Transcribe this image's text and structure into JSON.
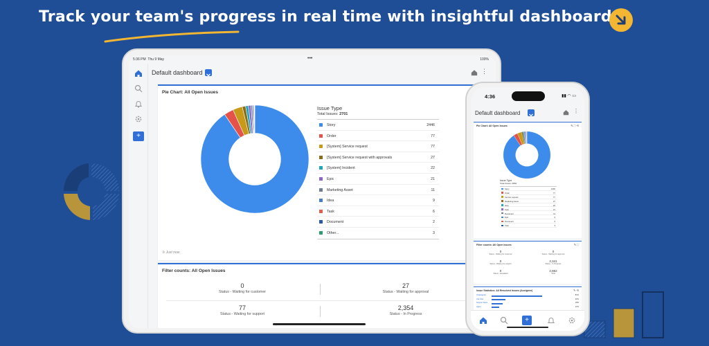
{
  "headline": "Track your team's progress in real time with insightful dashboards",
  "colors": {
    "background": "#1f4e96",
    "accent": "#f2b632",
    "brand": "#2f6fd6"
  },
  "tablet": {
    "status_time": "5:36 PM",
    "status_date": "Thu 9 May",
    "status_dots": "•••",
    "status_battery": "100%",
    "dashboard_title": "Default dashboard",
    "pie_card": {
      "title": "Pie Chart: All Open Issues",
      "legend_title": "Issue Type",
      "total_label": "Total Issues:",
      "total_value": "2701",
      "footer": "Just now"
    },
    "filter_card": {
      "title": "Filter counts: All Open Issues",
      "cells": [
        {
          "value": "0",
          "label": "Status - Waiting for customer"
        },
        {
          "value": "27",
          "label": "Status - Waiting for approval"
        },
        {
          "value": "77",
          "label": "Status - Waiting for support"
        },
        {
          "value": "2,354",
          "label": "Status - In Progress"
        }
      ]
    }
  },
  "chart_data": {
    "type": "pie",
    "title": "Pie Chart: All Open Issues",
    "categories": [
      "Story",
      "Order",
      "[System] Service request",
      "[System] Service request with approvals",
      "[System] Incident",
      "Epic",
      "Marketing Asset",
      "Idea",
      "Task",
      "Document",
      "Other..."
    ],
    "values": [
      2446,
      77,
      77,
      27,
      22,
      21,
      11,
      9,
      6,
      2,
      3
    ],
    "colors": [
      "#3d8bea",
      "#e5524a",
      "#c89a1a",
      "#8a6d1c",
      "#1fa7b8",
      "#8e68c9",
      "#6e7d91",
      "#4a7dc9",
      "#e06050",
      "#2c56a8",
      "#2f9e6e"
    ],
    "inner_radius_ratio": 0.48
  },
  "phone": {
    "status_time": "4:36",
    "dashboard_title": "Default dashboard",
    "pie_title": "Pie Chart: All Open Issues",
    "legend_title": "Issue Type",
    "legend_total": "Total Issues: 2862",
    "legend_rows": [
      {
        "label": "Story",
        "value": "2446"
      },
      {
        "label": "Order",
        "value": "77"
      },
      {
        "label": "Service request",
        "value": "77"
      },
      {
        "label": "Marketing Asset",
        "value": "27"
      },
      {
        "label": "Idea",
        "value": "22"
      },
      {
        "label": "Task",
        "value": "21"
      },
      {
        "label": "Document",
        "value": "11"
      },
      {
        "label": "Epic",
        "value": "9"
      },
      {
        "label": "Document",
        "value": "6"
      },
      {
        "label": "Task",
        "value": "3"
      }
    ],
    "filter_title": "Filter counts: All Open Issues",
    "filter_cells": [
      {
        "value": "0",
        "label": "Status - Waiting for customer"
      },
      {
        "value": "0",
        "label": "Status - Waiting for approval"
      },
      {
        "value": "0",
        "label": "Status - Waiting for support"
      },
      {
        "value": "2,341",
        "label": "Status - In Progress"
      },
      {
        "value": "0",
        "label": "Status - Escalated"
      },
      {
        "value": "2,862",
        "label": "Total"
      }
    ],
    "issue_stats_title": "Issue Statistics: All Resolved Issues (Assignee)",
    "issue_rows": [
      {
        "label": "Unassigned",
        "value": "0.81",
        "pct": "81%"
      },
      {
        "label": "Jira User",
        "value": "0.22",
        "pct": "22%"
      },
      {
        "label": "Support Team",
        "value": "0.18",
        "pct": "18%"
      },
      {
        "label": "Agent",
        "value": "0.12",
        "pct": "12%"
      }
    ]
  }
}
